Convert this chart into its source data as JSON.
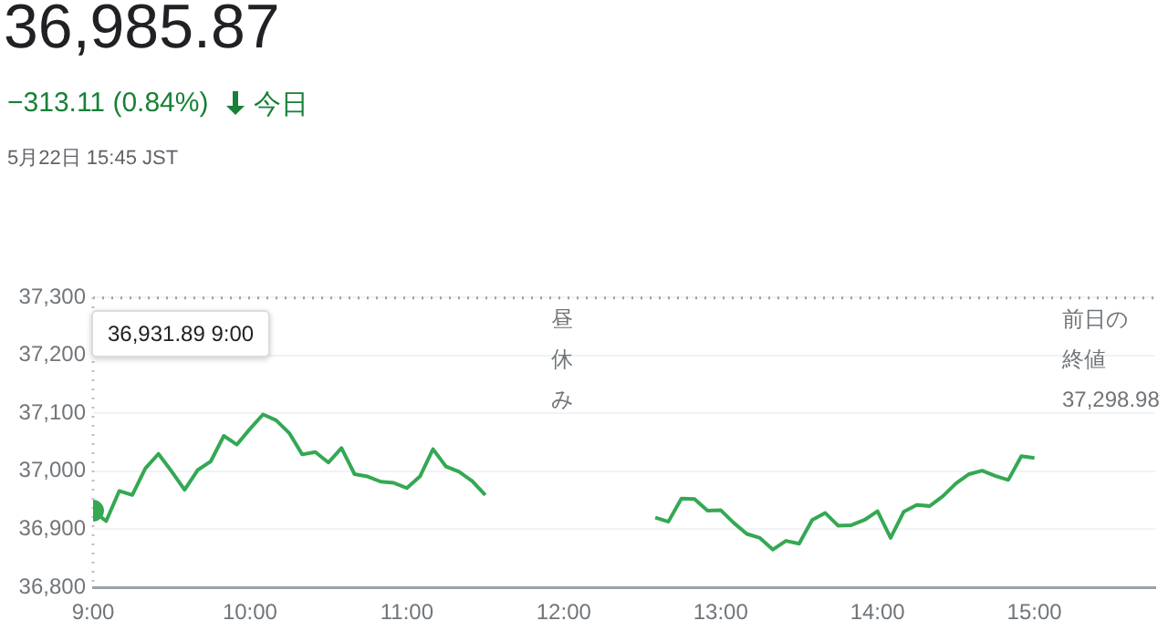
{
  "chart_data": {
    "type": "line",
    "title": "36,985.87",
    "subtitle": "−313.11 (0.84%)",
    "annotations": [
      "今日",
      "5月22日 15:45 JST",
      "昼休み",
      "36,931.89 9:00"
    ],
    "series": [
      {
        "color": "#34a853",
        "x": [
          9,
          9.0833,
          9.1667,
          9.25,
          9.3333,
          9.4167,
          9.5,
          9.5833,
          9.6667,
          9.75,
          9.8333,
          9.9167,
          10,
          10.0833,
          10.1667,
          10.25,
          10.3333,
          10.4167,
          10.5,
          10.5833,
          10.6667,
          10.75,
          10.8333,
          10.9167,
          11,
          11.0833,
          11.1667,
          11.25,
          11.3333,
          11.4167,
          11.5
        ],
        "values": [
          36931.89,
          36914,
          36966,
          36959,
          37005,
          37030,
          37000,
          36968,
          37002,
          37017,
          37061,
          37046,
          37073,
          37098,
          37088,
          37066,
          37029,
          37033,
          37015,
          37040,
          36995,
          36991,
          36982,
          36980,
          36971,
          36991,
          37038,
          37008,
          36999,
          36983,
          36959
        ]
      },
      {
        "color": "#34a853",
        "x": [
          12.5833,
          12.6667,
          12.75,
          12.8333,
          12.9167,
          13,
          13.0833,
          13.1667,
          13.25,
          13.3333,
          13.4167,
          13.5,
          13.5833,
          13.6667,
          13.75,
          13.8333,
          13.9167,
          14,
          14.0833,
          14.1667,
          14.25,
          14.3333,
          14.4167,
          14.5,
          14.5833,
          14.6667,
          14.75,
          14.8333,
          14.9167,
          15
        ],
        "values": [
          36920,
          36913,
          36953,
          36952,
          36932,
          36933,
          36911,
          36892,
          36885,
          36865,
          36880,
          36875,
          36916,
          36928,
          36906,
          36907,
          36916,
          36931,
          36885,
          36930,
          36942,
          36940,
          36957,
          36979,
          36995,
          37001,
          36992,
          36985,
          37026,
          37023
        ]
      }
    ],
    "xlim": [
      9,
      15.77
    ],
    "xticks": [
      {
        "value": 9,
        "label": "9:00"
      },
      {
        "value": 10,
        "label": "10:00"
      },
      {
        "value": 11,
        "label": "11:00"
      },
      {
        "value": 12,
        "label": "12:00"
      },
      {
        "value": 13,
        "label": "13:00"
      },
      {
        "value": 14,
        "label": "14:00"
      },
      {
        "value": 15,
        "label": "15:00"
      }
    ],
    "ylim": [
      36800,
      37300
    ],
    "yticks": [
      {
        "value": 36800,
        "label": "36,800"
      },
      {
        "value": 36900,
        "label": "36,900"
      },
      {
        "value": 37000,
        "label": "37,000"
      },
      {
        "value": 37100,
        "label": "37,100"
      },
      {
        "value": 37200,
        "label": "37,200"
      },
      {
        "value": 37300,
        "label": "37,300"
      }
    ],
    "ref_lines": [
      {
        "axis": "y",
        "value": 37298.98,
        "label": "前日の終値\n37,298.98",
        "color": "#9aa0a6",
        "line_style": "dotted"
      },
      {
        "axis": "x",
        "value": 9,
        "color": "#bdc1c6",
        "line_style": "dotted"
      }
    ],
    "grid": "y",
    "legend": false,
    "marker": "none",
    "line_style": "solid"
  }
}
